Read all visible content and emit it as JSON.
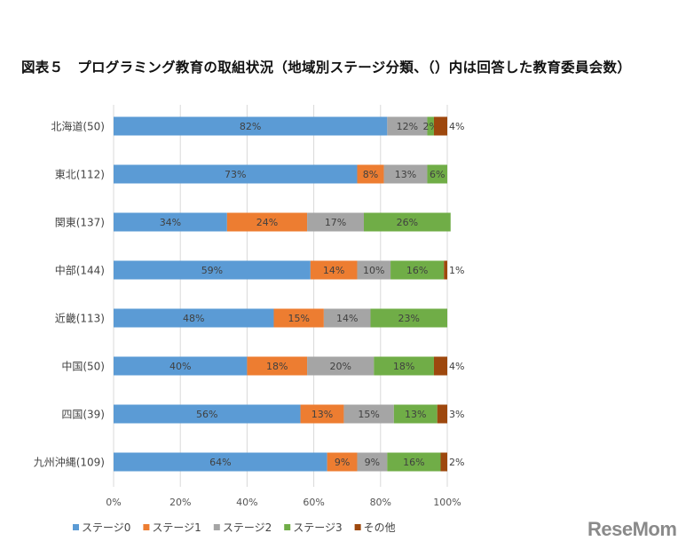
{
  "title": "図表５　プログラミング教育の取組状況（地域別ステージ分類、（）内は回答した教育委員会数）",
  "logo": "ReseMom",
  "chart_data": {
    "type": "bar",
    "orientation": "horizontal",
    "stacked": true,
    "title": "図表５　プログラミング教育の取組状況（地域別ステージ分類、（）内は回答した教育委員会数）",
    "categories": [
      "北海道(50)",
      "東北(112)",
      "関東(137)",
      "中部(144)",
      "近畿(113)",
      "中国(50)",
      "四国(39)",
      "九州沖縄(109)"
    ],
    "series": [
      {
        "name": "ステージ0",
        "color": "#5B9BD5",
        "values": [
          82,
          73,
          34,
          59,
          48,
          40,
          56,
          64
        ]
      },
      {
        "name": "ステージ1",
        "color": "#ED7D31",
        "values": [
          0,
          8,
          24,
          14,
          15,
          18,
          13,
          9
        ]
      },
      {
        "name": "ステージ2",
        "color": "#A5A5A5",
        "values": [
          12,
          13,
          17,
          10,
          14,
          20,
          15,
          9
        ]
      },
      {
        "name": "ステージ3",
        "color": "#70AD47",
        "values": [
          2,
          6,
          26,
          16,
          23,
          18,
          13,
          16
        ]
      },
      {
        "name": "その他",
        "color": "#9E480E",
        "values": [
          4,
          0,
          0,
          1,
          0,
          4,
          3,
          2
        ]
      }
    ],
    "xlim": [
      0,
      100
    ],
    "xticks": [
      "0%",
      "20%",
      "40%",
      "60%",
      "80%",
      "100%"
    ],
    "grid": true,
    "legend": "bottom"
  }
}
